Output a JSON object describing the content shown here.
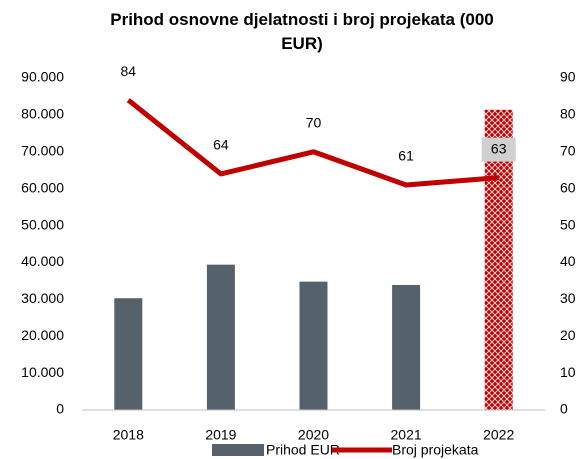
{
  "chart_data": {
    "type": "bar_line",
    "title": "Prihod osnovne djelatnosti i broj projekata (000 EUR)",
    "categories": [
      "2018",
      "2019",
      "2020",
      "2021",
      "2022"
    ],
    "series": [
      {
        "name": "Prihod EUR",
        "type": "bar",
        "color": "#56626b",
        "colors": [
          "#56626b",
          "#56626b",
          "#56626b",
          "#56626b",
          "#c00000"
        ],
        "values": [
          30300,
          39400,
          34800,
          33900,
          81400
        ]
      },
      {
        "name": "Broj projekata",
        "type": "line",
        "axis": "y2",
        "color": "#c00000",
        "values": [
          84,
          64,
          70,
          61,
          63
        ]
      }
    ],
    "ylim": [
      0,
      90000
    ],
    "yticks": [
      0,
      {
        "value": 10000,
        "label": "10.000"
      },
      {
        "value": 20000,
        "label": "20.000"
      },
      {
        "value": 30000,
        "label": "30.000"
      },
      {
        "value": 40000,
        "label": "40.000"
      },
      {
        "value": 50000,
        "label": "50.000"
      },
      {
        "value": 60000,
        "label": "60.000"
      },
      {
        "value": 70000,
        "label": "70.000"
      },
      {
        "value": 80000,
        "label": "80.000"
      },
      {
        "value": 90000,
        "label": "90.000"
      }
    ],
    "y2lim": [
      0,
      90
    ],
    "y2ticks": [
      0,
      10,
      20,
      30,
      40,
      50,
      60,
      70,
      80,
      90
    ],
    "grid": false,
    "legend": "bottom"
  }
}
